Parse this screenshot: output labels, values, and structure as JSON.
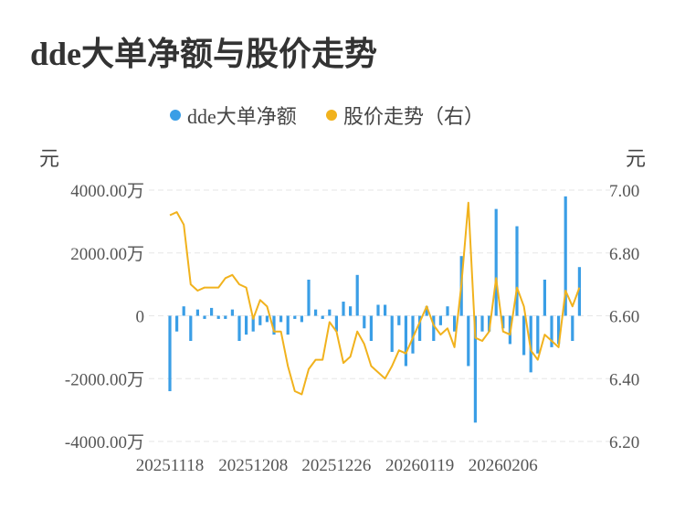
{
  "chart_data": {
    "type": "bar+line",
    "title": "dde大单净额与股价走势",
    "left_unit": "元",
    "right_unit": "元",
    "legend_position": "top-center",
    "grid": true,
    "series": [
      {
        "name": "dde大单净额",
        "type": "bar",
        "axis": "left",
        "color": "#3a9ee6",
        "values": [
          -2400,
          -500,
          300,
          -800,
          200,
          -100,
          250,
          -100,
          -100,
          200,
          -800,
          -600,
          -500,
          -300,
          -200,
          -600,
          -200,
          -600,
          -100,
          -200,
          1150,
          200,
          -100,
          200,
          -500,
          450,
          300,
          1300,
          -400,
          -800,
          350,
          350,
          -1150,
          -300,
          -1600,
          -1200,
          -800,
          300,
          -800,
          -300,
          300,
          -500,
          1900,
          -1600,
          -3400,
          -500,
          -500,
          3400,
          -400,
          -900,
          2850,
          -1250,
          -1800,
          -1200,
          1150,
          -1000,
          -900,
          3800,
          -800,
          1550
        ]
      },
      {
        "name": "股价走势（右）",
        "type": "line",
        "axis": "right",
        "color": "#f1b21d",
        "values": [
          6.92,
          6.93,
          6.89,
          6.7,
          6.68,
          6.69,
          6.69,
          6.69,
          6.72,
          6.73,
          6.7,
          6.69,
          6.59,
          6.65,
          6.63,
          6.55,
          6.55,
          6.44,
          6.36,
          6.35,
          6.43,
          6.46,
          6.46,
          6.58,
          6.55,
          6.45,
          6.47,
          6.55,
          6.51,
          6.44,
          6.42,
          6.4,
          6.44,
          6.49,
          6.48,
          6.53,
          6.58,
          6.63,
          6.57,
          6.54,
          6.56,
          6.5,
          6.7,
          6.96,
          6.53,
          6.52,
          6.55,
          6.72,
          6.55,
          6.54,
          6.69,
          6.63,
          6.49,
          6.46,
          6.54,
          6.52,
          6.5,
          6.68,
          6.63,
          6.69
        ]
      }
    ],
    "x_tick_labels": [
      "20251118",
      "20251208",
      "20251226",
      "20260119",
      "20260206"
    ],
    "x_tick_index": [
      0,
      12,
      24,
      36,
      48
    ],
    "y_left": {
      "ticks": [
        "4000.00万",
        "2000.00万",
        "0",
        "-2000.00万",
        "-4000.00万"
      ],
      "range": [
        -4000,
        4000
      ]
    },
    "y_right": {
      "ticks": [
        "7.00",
        "6.80",
        "6.60",
        "6.40",
        "6.20"
      ],
      "range": [
        6.2,
        7.0
      ]
    }
  }
}
